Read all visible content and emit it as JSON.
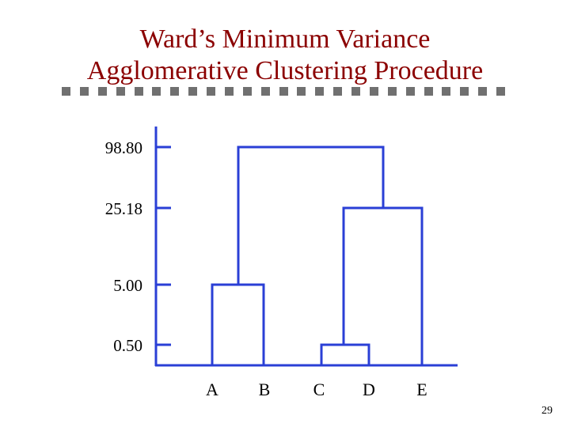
{
  "slide": {
    "title_line1": "Ward’s Minimum Variance",
    "title_line2": "Agglomerative Clustering Procedure",
    "page_number": "29"
  },
  "colors": {
    "title": "#8b0000",
    "dendrogram": "#2a3fd6",
    "divider": "#707070"
  },
  "dendrogram": {
    "leaves": [
      "A",
      "B",
      "C",
      "D",
      "E"
    ],
    "levels": [
      "98.80",
      "25.18",
      "5.00",
      "0.50"
    ],
    "merges": [
      {
        "members": [
          "C",
          "D"
        ],
        "height": "0.50"
      },
      {
        "members": [
          "A",
          "B"
        ],
        "height": "5.00"
      },
      {
        "members": [
          "C,D",
          "E"
        ],
        "height": "25.18"
      },
      {
        "members": [
          "A,B",
          "C,D,E"
        ],
        "height": "98.80"
      }
    ]
  }
}
